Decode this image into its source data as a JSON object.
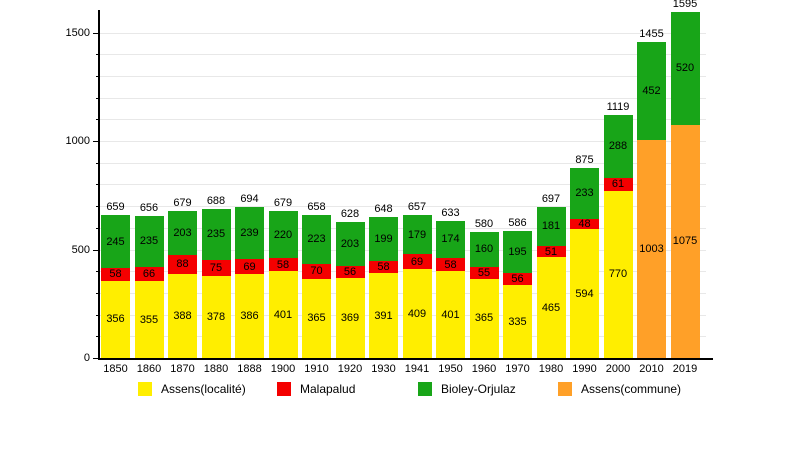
{
  "chart_data": {
    "type": "bar",
    "stacked": true,
    "title": "",
    "xlabel": "",
    "ylabel": "",
    "categories": [
      "1850",
      "1860",
      "1870",
      "1880",
      "1888",
      "1900",
      "1910",
      "1920",
      "1930",
      "1941",
      "1950",
      "1960",
      "1970",
      "1980",
      "1990",
      "2000",
      "2010",
      "2019"
    ],
    "series": [
      {
        "name": "Assens(localité)",
        "color": "#ffee00",
        "values": [
          356,
          355,
          388,
          378,
          386,
          401,
          365,
          369,
          391,
          409,
          401,
          365,
          335,
          465,
          594,
          770,
          0,
          0
        ]
      },
      {
        "name": "Malapalud",
        "color": "#f40000",
        "values": [
          58,
          66,
          88,
          75,
          69,
          58,
          70,
          56,
          58,
          69,
          58,
          55,
          56,
          51,
          48,
          61,
          0,
          0
        ]
      },
      {
        "name": "Bioley-Orjulaz",
        "color": "#18a518",
        "values": [
          245,
          235,
          203,
          235,
          239,
          220,
          223,
          203,
          199,
          179,
          174,
          160,
          195,
          181,
          233,
          288,
          452,
          520
        ]
      },
      {
        "name": "Assens(commune)",
        "color": "#ffa028",
        "values": [
          0,
          0,
          0,
          0,
          0,
          0,
          0,
          0,
          0,
          0,
          0,
          0,
          0,
          0,
          0,
          0,
          1003,
          1075
        ]
      }
    ],
    "stack_order": [
      0,
      1,
      3,
      2
    ],
    "totals": [
      659,
      656,
      679,
      688,
      694,
      679,
      658,
      628,
      648,
      657,
      633,
      580,
      586,
      697,
      875,
      1119,
      1455,
      1595
    ],
    "y_axis": {
      "ticks": [
        0,
        500,
        1000,
        1500
      ],
      "minor_step": 100,
      "grid_max": 1500,
      "ylim": [
        0,
        1600
      ]
    },
    "grid": true,
    "legend_position": "bottom",
    "colors": {
      "background": "#ffffff",
      "gridline": "#e8e8e8",
      "axis": "#000000",
      "text": "#000000"
    }
  }
}
